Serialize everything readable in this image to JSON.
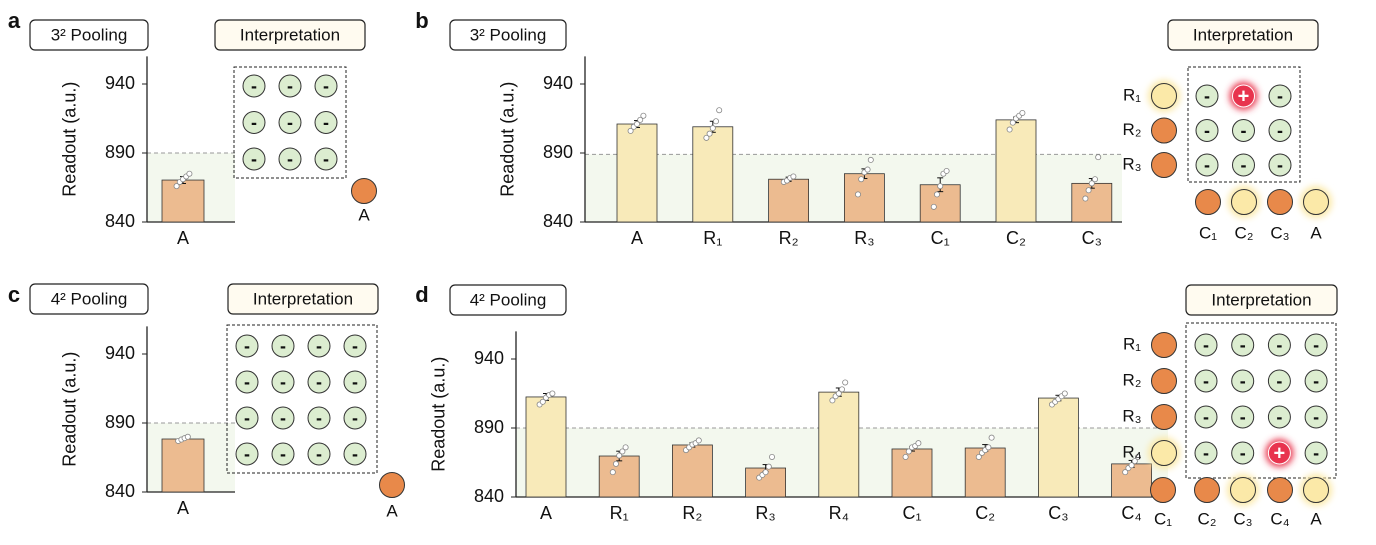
{
  "chart_data": [
    {
      "type": "bar",
      "panel": "a",
      "title": "3² Pooling",
      "ylabel": "Readout (a.u.)",
      "categories": [
        "A"
      ],
      "values": [
        870.4
      ],
      "errors": [
        2.5
      ],
      "colors": [
        "#ecbb90"
      ],
      "replicates": [
        [
          866,
          869,
          871,
          873,
          875
        ]
      ],
      "ylim": [
        840,
        960
      ],
      "yticks": [
        840,
        890,
        940
      ],
      "threshold": 890,
      "threshold_color": "#999",
      "shade_color": "#f3f8ee",
      "interpretation": {
        "title": "Interpretation",
        "cells": [
          [
            "-",
            "-",
            "-"
          ],
          [
            "-",
            "-",
            "-"
          ],
          [
            "-",
            "-",
            "-"
          ]
        ],
        "negative_color": "#dcedd0",
        "positive_color": "#e8344e",
        "rows": [],
        "cols": [
          {
            "label": "A",
            "color": "#e8894a",
            "glow": false
          }
        ]
      }
    },
    {
      "type": "bar",
      "panel": "b",
      "title": "3² Pooling",
      "ylabel": "Readout (a.u.)",
      "categories": [
        "A",
        "R₁",
        "R₂",
        "R₃",
        "C₁",
        "C₂",
        "C₃"
      ],
      "values": [
        911,
        909,
        871,
        875,
        867,
        914,
        868
      ],
      "errors": [
        2.5,
        4,
        1.5,
        3.5,
        5,
        2,
        3.5
      ],
      "colors": [
        "#f8eab9",
        "#f8eab9",
        "#ecbb90",
        "#ecbb90",
        "#ecbb90",
        "#f8eab9",
        "#ecbb90"
      ],
      "replicates": [
        [
          906,
          909,
          911,
          914,
          917
        ],
        [
          901,
          904,
          908,
          913,
          921
        ],
        [
          869,
          870,
          872,
          873
        ],
        [
          860,
          871,
          876,
          878,
          885
        ],
        [
          851,
          860,
          866,
          875,
          877
        ],
        [
          907,
          912,
          915,
          917,
          919
        ],
        [
          857,
          863,
          868,
          871,
          887
        ]
      ],
      "ylim": [
        840,
        960
      ],
      "yticks": [
        840,
        890,
        940
      ],
      "threshold": 889,
      "threshold_color": "#999",
      "shade_color": "#f3f8ee",
      "interpretation": {
        "title": "Interpretation",
        "cells": [
          [
            "-",
            "+",
            "-"
          ],
          [
            "-",
            "-",
            "-"
          ],
          [
            "-",
            "-",
            "-"
          ]
        ],
        "negative_color": "#dcedd0",
        "positive_color": "#e8344e",
        "rows": [
          {
            "label": "R₁",
            "color": "#fbe9a8",
            "glow": true
          },
          {
            "label": "R₂",
            "color": "#e8894a",
            "glow": false
          },
          {
            "label": "R₃",
            "color": "#e8894a",
            "glow": false
          }
        ],
        "cols": [
          {
            "label": "C₁",
            "color": "#e8894a",
            "glow": false
          },
          {
            "label": "C₂",
            "color": "#fbe9a8",
            "glow": true
          },
          {
            "label": "C₃",
            "color": "#e8894a",
            "glow": false
          },
          {
            "label": "A",
            "color": "#fbe9a8",
            "glow": true
          }
        ]
      }
    },
    {
      "type": "bar",
      "panel": "c",
      "title": "4² Pooling",
      "ylabel": "Readout (a.u.)",
      "categories": [
        "A"
      ],
      "values": [
        878.4
      ],
      "errors": [
        1
      ],
      "colors": [
        "#ecbb90"
      ],
      "replicates": [
        [
          877,
          878,
          879,
          880
        ]
      ],
      "ylim": [
        840,
        960
      ],
      "yticks": [
        840,
        890,
        940
      ],
      "threshold": 890,
      "threshold_color": "#999",
      "shade_color": "#f3f8ee",
      "interpretation": {
        "title": "Interpretation",
        "cells": [
          [
            "-",
            "-",
            "-",
            "-"
          ],
          [
            "-",
            "-",
            "-",
            "-"
          ],
          [
            "-",
            "-",
            "-",
            "-"
          ],
          [
            "-",
            "-",
            "-",
            "-"
          ]
        ],
        "negative_color": "#dcedd0",
        "positive_color": "#e8344e",
        "rows": [],
        "cols": [
          {
            "label": "A",
            "color": "#e8894a",
            "glow": false
          }
        ]
      }
    },
    {
      "type": "bar",
      "panel": "d",
      "title": "4² Pooling",
      "ylabel": "Readout (a.u.)",
      "categories": [
        "A",
        "R₁",
        "R₂",
        "R₃",
        "R₄",
        "C₁",
        "C₂",
        "C₃",
        "C₄"
      ],
      "values": [
        912.5,
        869.7,
        877.7,
        861,
        916,
        874.8,
        875.5,
        911.7,
        864
      ],
      "errors": [
        2.5,
        3.5,
        1.5,
        2.5,
        3,
        1.5,
        2.5,
        2,
        2.5
      ],
      "colors": [
        "#f8eab9",
        "#ecbb90",
        "#ecbb90",
        "#ecbb90",
        "#f8eab9",
        "#ecbb90",
        "#ecbb90",
        "#f8eab9",
        "#ecbb90"
      ],
      "replicates": [
        [
          907,
          909,
          912,
          914,
          915
        ],
        [
          858,
          864,
          870,
          873,
          876
        ],
        [
          874,
          876,
          878,
          879,
          881
        ],
        [
          854,
          856,
          858,
          862,
          869
        ],
        [
          910,
          913,
          915,
          918,
          923
        ],
        [
          869,
          873,
          876,
          877,
          879
        ],
        [
          869,
          872,
          874,
          876,
          883
        ],
        [
          907,
          909,
          911,
          913,
          915
        ],
        [
          858,
          861,
          863,
          866,
          869
        ]
      ],
      "ylim": [
        840,
        960
      ],
      "yticks": [
        840,
        890,
        940
      ],
      "threshold": 890,
      "threshold_color": "#999",
      "shade_color": "#f3f8ee",
      "interpretation": {
        "title": "Interpretation",
        "cells": [
          [
            "-",
            "-",
            "-",
            "-"
          ],
          [
            "-",
            "-",
            "-",
            "-"
          ],
          [
            "-",
            "-",
            "-",
            "-"
          ],
          [
            "-",
            "-",
            "+",
            "-"
          ]
        ],
        "negative_color": "#dcedd0",
        "positive_color": "#e8344e",
        "rows": [
          {
            "label": "R₁",
            "color": "#e8894a",
            "glow": false
          },
          {
            "label": "R₂",
            "color": "#e8894a",
            "glow": false
          },
          {
            "label": "R₃",
            "color": "#e8894a",
            "glow": false
          },
          {
            "label": "R₄",
            "color": "#fbe9a8",
            "glow": true
          }
        ],
        "cols": [
          {
            "label": "C₁",
            "color": "#e8894a",
            "glow": false
          },
          {
            "label": "C₂",
            "color": "#e8894a",
            "glow": false
          },
          {
            "label": "C₃",
            "color": "#fbe9a8",
            "glow": true
          },
          {
            "label": "C₄",
            "color": "#e8894a",
            "glow": false
          },
          {
            "label": "A",
            "color": "#fbe9a8",
            "glow": true
          }
        ]
      }
    }
  ]
}
